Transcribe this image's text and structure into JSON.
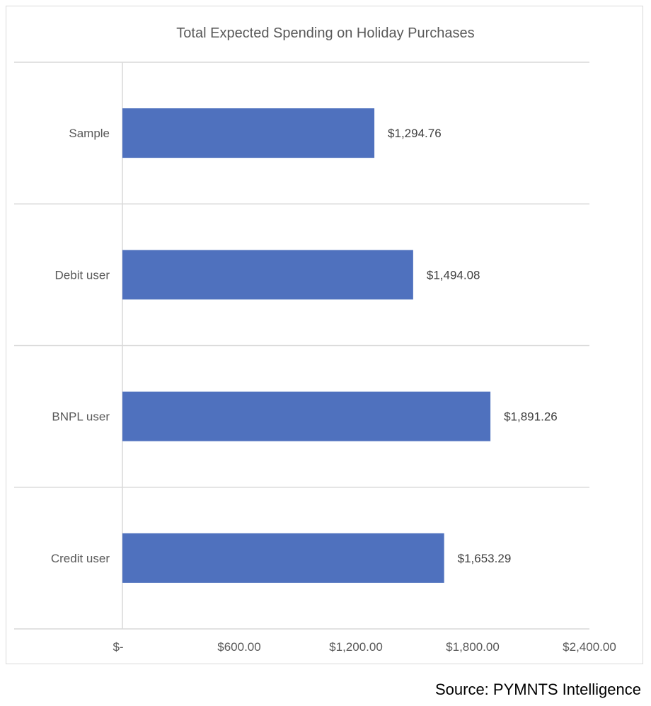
{
  "chart_data": {
    "type": "bar",
    "orientation": "horizontal",
    "title": "Total Expected Spending on Holiday Purchases",
    "categories": [
      "Sample",
      "Debit user",
      "BNPL user",
      "Credit user"
    ],
    "values": [
      1294.76,
      1494.08,
      1891.26,
      1653.29
    ],
    "data_labels": [
      "$1,294.76",
      "$1,494.08",
      "$1,891.26",
      "$1,653.29"
    ],
    "xlim": [
      0,
      2400
    ],
    "x_ticks": [
      0,
      600,
      1200,
      1800,
      2400
    ],
    "x_tick_labels": [
      "$-",
      "$600.00",
      "$1,200.00",
      "$1,800.00",
      "$2,400.00"
    ],
    "xlabel": "",
    "ylabel": "",
    "grid": "horizontal category separators",
    "legend": "none",
    "bar_color": "#4F71BE"
  },
  "source": "Source: PYMNTS Intelligence"
}
